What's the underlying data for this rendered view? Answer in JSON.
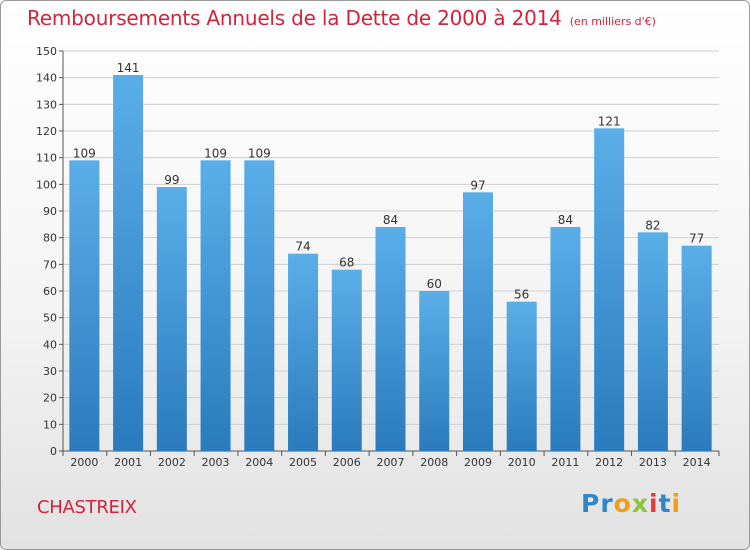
{
  "header": {
    "title": "Remboursements Annuels de la Dette de 2000 à 2014",
    "unit": "(en milliers d'€)"
  },
  "footer": {
    "place": "CHASTREIX",
    "brand": "Proxiti",
    "brand_letters": [
      {
        "ch": "P",
        "color": "#2f86c9"
      },
      {
        "ch": "r",
        "color": "#2f86c9"
      },
      {
        "ch": "o",
        "color": "#f39a16"
      },
      {
        "ch": "x",
        "color": "#8cc43c"
      },
      {
        "ch": "i",
        "color": "#e23a3a"
      },
      {
        "ch": "t",
        "color": "#2f86c9"
      },
      {
        "ch": "i",
        "color": "#f39a16"
      }
    ]
  },
  "chart_data": {
    "type": "bar",
    "categories": [
      "2000",
      "2001",
      "2002",
      "2003",
      "2004",
      "2005",
      "2006",
      "2007",
      "2008",
      "2009",
      "2010",
      "2011",
      "2012",
      "2013",
      "2014"
    ],
    "values": [
      109,
      141,
      99,
      109,
      109,
      74,
      68,
      84,
      60,
      97,
      56,
      84,
      121,
      82,
      77
    ],
    "ylim": [
      0,
      150
    ],
    "yticks": [
      0,
      10,
      20,
      30,
      40,
      50,
      60,
      70,
      80,
      90,
      100,
      110,
      120,
      130,
      140,
      150
    ],
    "grid": true,
    "bar_color_top": "#5aaee8",
    "bar_color_bottom": "#2a7bbd",
    "text_color": "#d2233c"
  }
}
